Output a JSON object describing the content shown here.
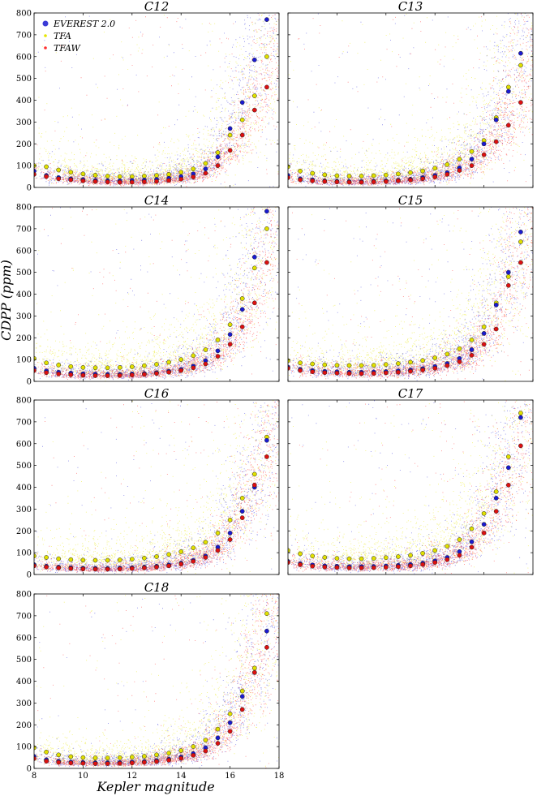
{
  "figure": {
    "xlabel": "Kepler magnitude",
    "ylabel": "CDPP (ppm)"
  },
  "legend": {
    "placement": "top-left of first panel",
    "entries": [
      {
        "label": "EVEREST 2.0",
        "color": "#3b3bd6"
      },
      {
        "label": "TFA",
        "color": "#e6e600"
      },
      {
        "label": "TFAW",
        "color": "#ff3030"
      }
    ]
  },
  "colors": {
    "everest": "#2a2ad8",
    "tfa": "#e8e800",
    "tfaw": "#ff2020",
    "everest_med": "#1a1ad0",
    "tfa_med": "#e0e000",
    "tfaw_med": "#dd1010"
  },
  "chart_data": {
    "type": "scatter",
    "xlim": [
      8,
      18
    ],
    "ylim": [
      0,
      800
    ],
    "x_ticks": [
      8,
      10,
      12,
      14,
      16,
      18
    ],
    "y_ticks": [
      0,
      100,
      200,
      300,
      400,
      500,
      600,
      700,
      800
    ],
    "panels": [
      {
        "title": "C12",
        "median_x": [
          8,
          8.5,
          9,
          9.5,
          10,
          10.5,
          11,
          11.5,
          12,
          12.5,
          13,
          13.5,
          14,
          14.5,
          15,
          15.5,
          16,
          16.5,
          17,
          17.5
        ],
        "series": [
          {
            "name": "EVEREST 2.0",
            "median_y": [
              75,
              55,
              45,
              40,
              36,
              32,
              30,
              30,
              32,
              34,
              37,
              42,
              50,
              62,
              85,
              140,
              270,
              390,
              585,
              770
            ]
          },
          {
            "name": "TFA",
            "median_y": [
              100,
              95,
              80,
              70,
              62,
              56,
              52,
              50,
              50,
              52,
              55,
              60,
              70,
              85,
              110,
              160,
              240,
              310,
              420,
              600
            ]
          },
          {
            "name": "TFAW",
            "median_y": [
              60,
              50,
              40,
              35,
              30,
              27,
              25,
              24,
              24,
              26,
              28,
              32,
              38,
              48,
              65,
              100,
              170,
              240,
              355,
              460
            ]
          }
        ]
      },
      {
        "title": "C13",
        "median_x": [
          8,
          8.5,
          9,
          9.5,
          10,
          10.5,
          11,
          11.5,
          12,
          12.5,
          13,
          13.5,
          14,
          14.5,
          15,
          15.5,
          16,
          16.5,
          17,
          17.5
        ],
        "series": [
          {
            "name": "EVEREST 2.0",
            "median_y": [
              55,
              40,
              35,
              30,
              28,
              27,
              27,
              28,
              30,
              33,
              38,
              45,
              55,
              68,
              90,
              130,
              200,
              310,
              440,
              615
            ]
          },
          {
            "name": "TFA",
            "median_y": [
              95,
              75,
              65,
              58,
              54,
              52,
              52,
              54,
              57,
              62,
              68,
              76,
              88,
              105,
              130,
              165,
              215,
              320,
              460,
              560
            ]
          },
          {
            "name": "TFAW",
            "median_y": [
              45,
              35,
              30,
              27,
              25,
              24,
              24,
              25,
              27,
              30,
              34,
              40,
              48,
              60,
              78,
              100,
              150,
              210,
              285,
              390
            ]
          }
        ]
      },
      {
        "title": "C14",
        "median_x": [
          8,
          8.5,
          9,
          9.5,
          10,
          10.5,
          11,
          11.5,
          12,
          12.5,
          13,
          13.5,
          14,
          14.5,
          15,
          15.5,
          16,
          16.5,
          17,
          17.5
        ],
        "series": [
          {
            "name": "EVEREST 2.0",
            "median_y": [
              60,
              48,
              42,
              38,
              35,
              33,
              32,
              32,
              34,
              36,
              40,
              46,
              55,
              70,
              95,
              140,
              215,
              330,
              570,
              780
            ]
          },
          {
            "name": "TFA",
            "median_y": [
              105,
              85,
              75,
              68,
              64,
              62,
              62,
              64,
              67,
              72,
              78,
              88,
              100,
              118,
              145,
              190,
              260,
              380,
              520,
              700
            ]
          },
          {
            "name": "TFAW",
            "median_y": [
              50,
              40,
              34,
              30,
              28,
              26,
              26,
              27,
              29,
              32,
              36,
              42,
              50,
              62,
              80,
              115,
              170,
              250,
              360,
              545
            ]
          }
        ]
      },
      {
        "title": "C15",
        "median_x": [
          8,
          8.5,
          9,
          9.5,
          10,
          10.5,
          11,
          11.5,
          12,
          12.5,
          13,
          13.5,
          14,
          14.5,
          15,
          15.5,
          16,
          16.5,
          17,
          17.5
        ],
        "series": [
          {
            "name": "EVEREST 2.0",
            "median_y": [
              65,
              55,
              50,
              46,
              44,
              42,
              42,
              43,
              45,
              48,
              52,
              58,
              68,
              82,
              105,
              145,
              220,
              350,
              500,
              685
            ]
          },
          {
            "name": "TFA",
            "median_y": [
              95,
              85,
              80,
              76,
              74,
              73,
              73,
              74,
              77,
              82,
              88,
              96,
              108,
              125,
              150,
              190,
              250,
              360,
              480,
              640
            ]
          },
          {
            "name": "TFAW",
            "median_y": [
              60,
              50,
              44,
              40,
              38,
              36,
              36,
              37,
              39,
              42,
              46,
              52,
              60,
              72,
              90,
              120,
              170,
              240,
              440,
              545
            ]
          }
        ]
      },
      {
        "title": "C16",
        "median_x": [
          8,
          8.5,
          9,
          9.5,
          10,
          10.5,
          11,
          11.5,
          12,
          12.5,
          13,
          13.5,
          14,
          14.5,
          15,
          15.5,
          16,
          16.5,
          17,
          17.5
        ],
        "series": [
          {
            "name": "EVEREST 2.0",
            "median_y": [
              45,
              38,
              34,
              31,
              29,
              28,
              28,
              29,
              31,
              34,
              38,
              44,
              52,
              65,
              85,
              125,
              190,
              290,
              400,
              615
            ]
          },
          {
            "name": "TFA",
            "median_y": [
              85,
              78,
              72,
              68,
              66,
              65,
              65,
              67,
              70,
              75,
              82,
              92,
              105,
              122,
              148,
              190,
              250,
              350,
              460,
              630
            ]
          },
          {
            "name": "TFAW",
            "median_y": [
              40,
              34,
              30,
              27,
              25,
              24,
              24,
              25,
              27,
              30,
              34,
              40,
              48,
              60,
              78,
              110,
              160,
              260,
              410,
              540
            ]
          }
        ]
      },
      {
        "title": "C17",
        "median_x": [
          8,
          8.5,
          9,
          9.5,
          10,
          10.5,
          11,
          11.5,
          12,
          12.5,
          13,
          13.5,
          14,
          14.5,
          15,
          15.5,
          16,
          16.5,
          17,
          17.5
        ],
        "series": [
          {
            "name": "EVEREST 2.0",
            "median_y": [
              60,
              50,
              44,
              40,
              38,
              36,
              36,
              37,
              39,
              42,
              46,
              52,
              62,
              78,
              105,
              150,
              230,
              350,
              490,
              720
            ]
          },
          {
            "name": "TFA",
            "median_y": [
              110,
              95,
              85,
              78,
              74,
              72,
              72,
              74,
              77,
              82,
              88,
              97,
              110,
              130,
              160,
              210,
              280,
              380,
              540,
              740
            ]
          },
          {
            "name": "TFAW",
            "median_y": [
              55,
              45,
              38,
              34,
              32,
              30,
              30,
              31,
              33,
              36,
              40,
              46,
              55,
              68,
              88,
              125,
              190,
              290,
              410,
              590
            ]
          }
        ]
      },
      {
        "title": "C18",
        "median_x": [
          8,
          8.5,
          9,
          9.5,
          10,
          10.5,
          11,
          11.5,
          12,
          12.5,
          13,
          13.5,
          14,
          14.5,
          15,
          15.5,
          16,
          16.5,
          17,
          17.5
        ],
        "series": [
          {
            "name": "EVEREST 2.0",
            "median_y": [
              55,
              40,
              33,
              29,
              27,
              26,
              26,
              27,
              29,
              32,
              36,
              42,
              52,
              68,
              95,
              140,
              210,
              330,
              440,
              630
            ]
          },
          {
            "name": "TFA",
            "median_y": [
              95,
              75,
              62,
              54,
              50,
              48,
              48,
              49,
              52,
              56,
              62,
              70,
              82,
              100,
              130,
              180,
              250,
              355,
              460,
              710
            ]
          },
          {
            "name": "TFAW",
            "median_y": [
              45,
              33,
              28,
              25,
              23,
              22,
              22,
              23,
              25,
              28,
              32,
              38,
              46,
              60,
              80,
              115,
              170,
              270,
              440,
              555
            ]
          }
        ]
      }
    ]
  }
}
